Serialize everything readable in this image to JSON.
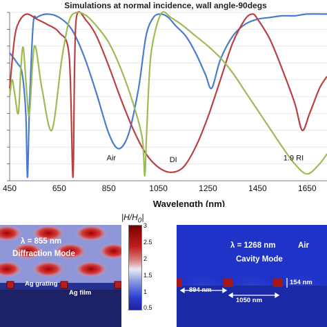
{
  "chart_data": {
    "type": "line",
    "title": "Simulations at normal incidence, wall angle-90degs",
    "xlabel": "Wavelength (nm)",
    "x_ticks": [
      450,
      650,
      850,
      1050,
      1250,
      1450,
      1650
    ],
    "xlim": [
      450,
      1730
    ],
    "ylim": [
      0,
      1
    ],
    "annotations": [
      {
        "text": "Air",
        "x": 860,
        "y": 0.12
      },
      {
        "text": "DI",
        "x": 1110,
        "y": 0.11
      },
      {
        "text": "1.9 RI",
        "x": 1595,
        "y": 0.12
      }
    ],
    "series": [
      {
        "color": "#4a7bd0",
        "x": [
          450,
          480,
          500,
          515,
          522,
          530,
          545,
          560,
          600,
          650,
          700,
          750,
          800,
          850,
          890,
          930,
          970,
          1000,
          1030,
          1060,
          1090,
          1120,
          1160,
          1200,
          1240,
          1265,
          1300,
          1350,
          1400,
          1450,
          1500,
          1550,
          1600,
          1650,
          1730
        ],
        "y": [
          0.76,
          0.7,
          0.64,
          0.4,
          0.02,
          0.45,
          0.93,
          0.97,
          0.99,
          0.97,
          0.9,
          0.74,
          0.52,
          0.28,
          0.19,
          0.28,
          0.55,
          0.86,
          0.97,
          0.99,
          0.97,
          0.92,
          0.86,
          0.76,
          0.63,
          0.55,
          0.72,
          0.86,
          0.93,
          0.96,
          0.97,
          0.98,
          0.98,
          0.99,
          0.99
        ]
      },
      {
        "color": "#b8403f",
        "x": [
          450,
          470,
          490,
          520,
          560,
          600,
          650,
          690,
          705,
          712,
          722,
          760,
          800,
          850,
          900,
          950,
          1000,
          1050,
          1100,
          1150,
          1200,
          1250,
          1300,
          1350,
          1400,
          1430,
          1450,
          1500,
          1550,
          1600,
          1630,
          1660,
          1700,
          1730
        ],
        "y": [
          0.55,
          0.85,
          0.95,
          0.99,
          0.96,
          0.93,
          0.88,
          0.74,
          0.02,
          0.7,
          0.99,
          0.95,
          0.86,
          0.68,
          0.48,
          0.3,
          0.16,
          0.08,
          0.05,
          0.08,
          0.2,
          0.38,
          0.6,
          0.82,
          0.96,
          0.99,
          0.96,
          0.84,
          0.66,
          0.46,
          0.3,
          0.4,
          0.55,
          0.62
        ]
      },
      {
        "color": "#9dbb54",
        "x": [
          450,
          460,
          470,
          485,
          495,
          505,
          520,
          530,
          550,
          580,
          620,
          660,
          690,
          720,
          760,
          800,
          850,
          900,
          950,
          985,
          995,
          1003,
          1020,
          1060,
          1100,
          1150,
          1200,
          1250,
          1300,
          1350,
          1400,
          1450,
          1500,
          1550,
          1600,
          1650,
          1700,
          1730
        ],
        "y": [
          0.5,
          0.6,
          0.52,
          0.4,
          0.66,
          0.79,
          0.5,
          0.4,
          0.8,
          0.55,
          0.3,
          0.72,
          0.95,
          1.0,
          0.98,
          0.92,
          0.82,
          0.66,
          0.45,
          0.25,
          0.03,
          0.3,
          0.75,
          0.99,
          0.97,
          0.92,
          0.86,
          0.8,
          0.73,
          0.64,
          0.53,
          0.42,
          0.31,
          0.2,
          0.1,
          0.04,
          0.1,
          0.16
        ]
      }
    ]
  },
  "field_maps": {
    "colorbar": {
      "title": "|H/H",
      "title_sub": "0",
      "title_end": "|",
      "ticks": [
        "3",
        "2.5",
        "2",
        "1.5",
        "1",
        "0.5"
      ]
    },
    "left_panel": {
      "wavelength": "λ = 855 nm",
      "mode": "Diffraction Mode",
      "grating_label": "Ag grating",
      "film_label": "Ag film"
    },
    "right_panel": {
      "wavelength": "λ = 1268 nm",
      "medium": "Air",
      "mode": "Cavity Mode",
      "dim_period": "894 nm",
      "dim_gap": "1050 nm",
      "dim_height": "154 nm"
    }
  }
}
